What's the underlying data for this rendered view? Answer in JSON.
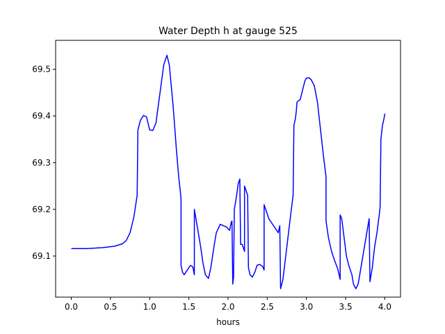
{
  "chart_data": {
    "type": "line",
    "title": "Water Depth h at gauge 525",
    "xlabel": "hours",
    "ylabel": "",
    "xlim": [
      -0.2,
      4.2
    ],
    "ylim": [
      69.012,
      69.562
    ],
    "xticks": [
      {
        "value": 0.0,
        "label": "0.0"
      },
      {
        "value": 0.5,
        "label": "0.5"
      },
      {
        "value": 1.0,
        "label": "1.0"
      },
      {
        "value": 1.5,
        "label": "1.5"
      },
      {
        "value": 2.0,
        "label": "2.0"
      },
      {
        "value": 2.5,
        "label": "2.5"
      },
      {
        "value": 3.0,
        "label": "3.0"
      },
      {
        "value": 3.5,
        "label": "3.5"
      },
      {
        "value": 4.0,
        "label": "4.0"
      }
    ],
    "yticks": [
      {
        "value": 69.1,
        "label": "69.1"
      },
      {
        "value": 69.2,
        "label": "69.2"
      },
      {
        "value": 69.3,
        "label": "69.3"
      },
      {
        "value": 69.4,
        "label": "69.4"
      },
      {
        "value": 69.5,
        "label": "69.5"
      }
    ],
    "grid": false,
    "series": [
      {
        "color": "#0000ff",
        "points": [
          [
            0.0,
            69.116
          ],
          [
            0.2,
            69.116
          ],
          [
            0.4,
            69.118
          ],
          [
            0.55,
            69.121
          ],
          [
            0.65,
            69.126
          ],
          [
            0.7,
            69.133
          ],
          [
            0.75,
            69.15
          ],
          [
            0.8,
            69.185
          ],
          [
            0.84,
            69.23
          ],
          [
            0.85,
            69.37
          ],
          [
            0.88,
            69.39
          ],
          [
            0.92,
            69.401
          ],
          [
            0.96,
            69.398
          ],
          [
            1.0,
            69.37
          ],
          [
            1.04,
            69.369
          ],
          [
            1.08,
            69.385
          ],
          [
            1.1,
            69.41
          ],
          [
            1.14,
            69.46
          ],
          [
            1.18,
            69.51
          ],
          [
            1.22,
            69.53
          ],
          [
            1.25,
            69.51
          ],
          [
            1.3,
            69.42
          ],
          [
            1.34,
            69.33
          ],
          [
            1.37,
            69.27
          ],
          [
            1.39,
            69.24
          ],
          [
            1.4,
            69.222
          ],
          [
            1.4,
            69.08
          ],
          [
            1.42,
            69.065
          ],
          [
            1.44,
            69.06
          ],
          [
            1.48,
            69.07
          ],
          [
            1.52,
            69.08
          ],
          [
            1.55,
            69.077
          ],
          [
            1.57,
            69.06
          ],
          [
            1.57,
            69.2
          ],
          [
            1.59,
            69.18
          ],
          [
            1.62,
            69.15
          ],
          [
            1.65,
            69.12
          ],
          [
            1.68,
            69.085
          ],
          [
            1.71,
            69.06
          ],
          [
            1.75,
            69.052
          ],
          [
            1.78,
            69.075
          ],
          [
            1.82,
            69.12
          ],
          [
            1.85,
            69.15
          ],
          [
            1.9,
            69.168
          ],
          [
            1.94,
            69.165
          ],
          [
            1.98,
            69.162
          ],
          [
            2.02,
            69.155
          ],
          [
            2.04,
            69.172
          ],
          [
            2.05,
            69.175
          ],
          [
            2.06,
            69.04
          ],
          [
            2.07,
            69.055
          ],
          [
            2.08,
            69.2
          ],
          [
            2.1,
            69.22
          ],
          [
            2.13,
            69.255
          ],
          [
            2.15,
            69.265
          ],
          [
            2.16,
            69.125
          ],
          [
            2.18,
            69.125
          ],
          [
            2.21,
            69.11
          ],
          [
            2.21,
            69.25
          ],
          [
            2.23,
            69.24
          ],
          [
            2.25,
            69.23
          ],
          [
            2.26,
            69.075
          ],
          [
            2.28,
            69.06
          ],
          [
            2.31,
            69.055
          ],
          [
            2.34,
            69.065
          ],
          [
            2.37,
            69.08
          ],
          [
            2.4,
            69.082
          ],
          [
            2.44,
            69.078
          ],
          [
            2.46,
            69.07
          ],
          [
            2.46,
            69.21
          ],
          [
            2.48,
            69.2
          ],
          [
            2.52,
            69.18
          ],
          [
            2.56,
            69.17
          ],
          [
            2.6,
            69.16
          ],
          [
            2.64,
            69.15
          ],
          [
            2.66,
            69.165
          ],
          [
            2.67,
            69.03
          ],
          [
            2.7,
            69.05
          ],
          [
            2.75,
            69.12
          ],
          [
            2.8,
            69.19
          ],
          [
            2.83,
            69.23
          ],
          [
            2.84,
            69.38
          ],
          [
            2.86,
            69.395
          ],
          [
            2.87,
            69.41
          ],
          [
            2.88,
            69.43
          ],
          [
            2.92,
            69.435
          ],
          [
            2.95,
            69.455
          ],
          [
            2.98,
            69.475
          ],
          [
            3.0,
            69.481
          ],
          [
            3.03,
            69.482
          ],
          [
            3.06,
            69.478
          ],
          [
            3.1,
            69.465
          ],
          [
            3.14,
            69.43
          ],
          [
            3.18,
            69.37
          ],
          [
            3.22,
            69.31
          ],
          [
            3.25,
            69.27
          ],
          [
            3.25,
            69.175
          ],
          [
            3.28,
            69.14
          ],
          [
            3.32,
            69.11
          ],
          [
            3.36,
            69.09
          ],
          [
            3.4,
            69.072
          ],
          [
            3.43,
            69.05
          ],
          [
            3.43,
            69.188
          ],
          [
            3.45,
            69.18
          ],
          [
            3.48,
            69.14
          ],
          [
            3.51,
            69.1
          ],
          [
            3.54,
            69.08
          ],
          [
            3.56,
            69.07
          ],
          [
            3.58,
            69.06
          ],
          [
            3.6,
            69.04
          ],
          [
            3.63,
            69.03
          ],
          [
            3.66,
            69.04
          ],
          [
            3.7,
            69.08
          ],
          [
            3.74,
            69.12
          ],
          [
            3.77,
            69.15
          ],
          [
            3.8,
            69.18
          ],
          [
            3.81,
            69.045
          ],
          [
            3.84,
            69.075
          ],
          [
            3.87,
            69.12
          ],
          [
            3.9,
            69.15
          ],
          [
            3.93,
            69.19
          ],
          [
            3.94,
            69.205
          ],
          [
            3.95,
            69.35
          ],
          [
            3.97,
            69.38
          ],
          [
            3.99,
            69.395
          ],
          [
            4.0,
            69.405
          ]
        ]
      }
    ]
  }
}
